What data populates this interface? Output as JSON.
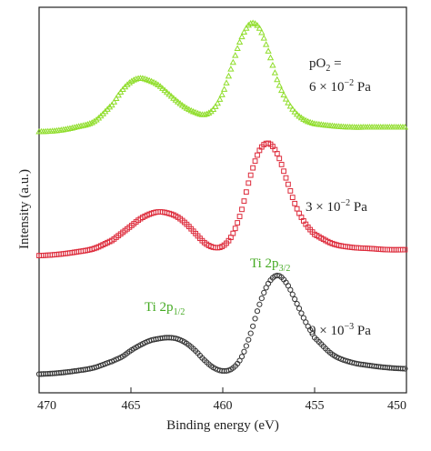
{
  "chart_data": {
    "type": "scatter",
    "title": "",
    "xlabel": "Binding energy (eV)",
    "ylabel": "Intensity (a.u.)",
    "xlim": [
      470,
      450
    ],
    "x_reversed": true,
    "y_ticks_shown": false,
    "grid": false,
    "x_ticks": [
      "470",
      "465",
      "460",
      "455",
      "450"
    ],
    "x": [
      470,
      469,
      468,
      467,
      466,
      465.5,
      465,
      464.5,
      464,
      463.5,
      463,
      462.5,
      462,
      461.5,
      461,
      460.5,
      460,
      459.5,
      459,
      458.5,
      458,
      457.5,
      457,
      456.5,
      456,
      455.5,
      455,
      454,
      453,
      452,
      451,
      450
    ],
    "series": [
      {
        "name": "9 × 10⁻³ Pa",
        "color": "#333333",
        "marker": "circle",
        "values": [
          0.03,
          0.04,
          0.06,
          0.09,
          0.15,
          0.19,
          0.25,
          0.3,
          0.34,
          0.36,
          0.37,
          0.36,
          0.32,
          0.25,
          0.16,
          0.09,
          0.06,
          0.08,
          0.18,
          0.4,
          0.68,
          0.88,
          0.95,
          0.87,
          0.7,
          0.52,
          0.37,
          0.21,
          0.14,
          0.11,
          0.09,
          0.08
        ]
      },
      {
        "name": "3 × 10⁻² Pa",
        "color": "#dd2a3a",
        "marker": "square",
        "values": [
          0.03,
          0.04,
          0.06,
          0.09,
          0.16,
          0.22,
          0.28,
          0.34,
          0.38,
          0.4,
          0.39,
          0.36,
          0.3,
          0.22,
          0.14,
          0.1,
          0.11,
          0.2,
          0.4,
          0.7,
          0.92,
          0.98,
          0.88,
          0.66,
          0.44,
          0.3,
          0.21,
          0.13,
          0.1,
          0.09,
          0.08,
          0.08
        ]
      },
      {
        "name": "pO₂ = 6 × 10⁻² Pa",
        "color": "#8fdd2a",
        "marker": "triangle",
        "values": [
          0.04,
          0.05,
          0.08,
          0.13,
          0.28,
          0.4,
          0.48,
          0.51,
          0.49,
          0.45,
          0.38,
          0.31,
          0.25,
          0.21,
          0.19,
          0.24,
          0.38,
          0.62,
          0.86,
          0.99,
          0.95,
          0.74,
          0.48,
          0.31,
          0.2,
          0.14,
          0.11,
          0.09,
          0.08,
          0.08,
          0.08,
          0.08
        ]
      }
    ],
    "annotations": [
      {
        "id": "ann1",
        "text": "pO",
        "sub": "2",
        "after": " ="
      },
      {
        "id": "ann2",
        "text": "6 × 10",
        "sup": "−2",
        "after": " Pa"
      },
      {
        "id": "ann3",
        "text": "3 × 10",
        "sup": "−2",
        "after": " Pa"
      },
      {
        "id": "ann4",
        "text": "9 × 10",
        "sup": "−3",
        "after": " Pa"
      }
    ],
    "peak_labels": [
      {
        "id": "p32",
        "text": "Ti 2p",
        "sub": "3/2",
        "color": "#44aa22"
      },
      {
        "id": "p12",
        "text": "Ti 2p",
        "sub": "1/2",
        "color": "#44aa22"
      }
    ]
  }
}
